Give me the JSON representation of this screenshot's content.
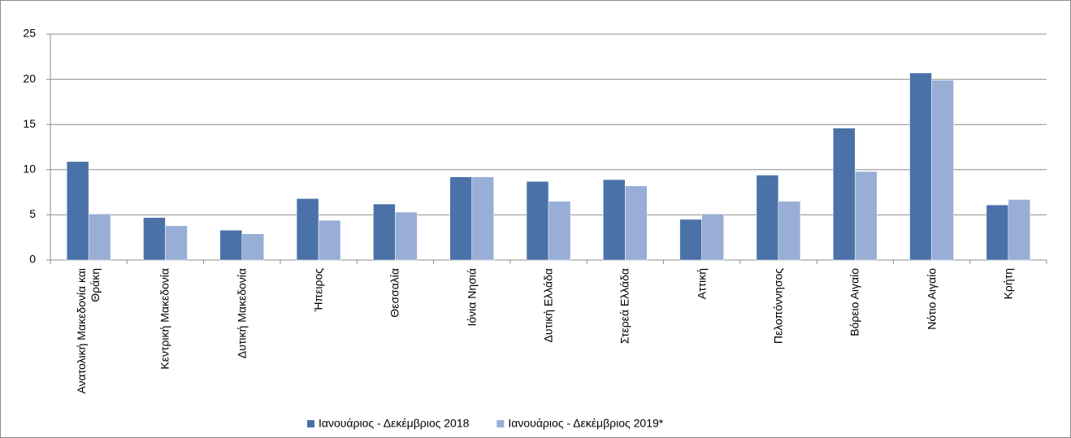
{
  "chart_data": {
    "type": "bar",
    "categories": [
      "Ανατολική Μακεδονία και Θράκη",
      "Κεντρική Μακεδονία",
      "Δυτική Μακεδονία",
      "Ήπειρος",
      "Θεσσαλία",
      "Ιόνια Νησιά",
      "Δυτική Ελλάδα",
      "Στερεά Ελλάδα",
      "Αττική",
      "Πελοπόννησος",
      "Βόρειο Αιγαίο",
      "Νότιο Αιγαίο",
      "Κρήτη"
    ],
    "series": [
      {
        "name": "Ιανουάριος - Δεκέμβριος 2018",
        "color": "#4a72a8",
        "values": [
          10.9,
          4.7,
          3.3,
          6.8,
          6.2,
          9.2,
          8.7,
          8.9,
          4.5,
          9.4,
          14.6,
          20.7,
          6.1
        ]
      },
      {
        "name": "Ιανουάριος - Δεκέμβριος 2019*",
        "color": "#98aed6",
        "values": [
          5.1,
          3.8,
          2.9,
          4.4,
          5.3,
          9.2,
          6.5,
          8.2,
          5.1,
          6.5,
          9.8,
          19.9,
          6.7
        ]
      }
    ],
    "ylim": [
      0,
      25
    ],
    "yticks": [
      0,
      5,
      10,
      15,
      20,
      25
    ],
    "grid": true,
    "legend": "bottom"
  }
}
